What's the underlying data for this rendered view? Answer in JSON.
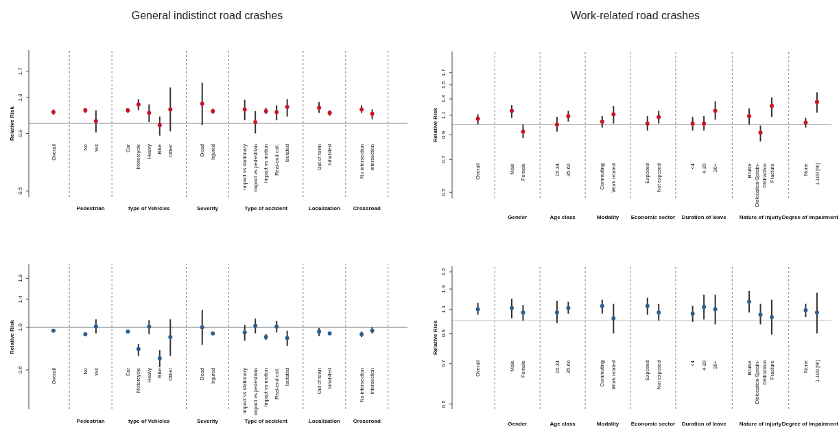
{
  "chart_data": [
    {
      "type": "scatter",
      "title": "General indistinct road crashes",
      "ylabel": "Relative Risk",
      "log": true,
      "marker": "circle",
      "color": "#cc1424",
      "categories": [
        "Overall",
        null,
        null,
        "No",
        "Yes",
        null,
        null,
        "Car",
        "Motorcycle",
        "Heavy",
        "Bike",
        "Other",
        null,
        null,
        "Dead",
        "Injured",
        null,
        null,
        "Impact vs stationary",
        "Impact vs pedestrian",
        "Impact vs motion",
        "Real-end coll.",
        "Isolated",
        null,
        null,
        "Out of town",
        "Inhabited",
        null,
        null,
        "No intersection",
        "Intersection",
        null,
        null
      ],
      "ylim": [
        0.47,
        2.11
      ],
      "yticks": [
        0.5,
        0.9,
        1.3,
        1.7
      ],
      "values": [
        1.12,
        null,
        null,
        1.14,
        1.02,
        null,
        null,
        1.14,
        1.21,
        1.11,
        0.98,
        1.15,
        null,
        null,
        1.22,
        1.13,
        null,
        null,
        1.15,
        1.01,
        1.13,
        1.12,
        1.18,
        null,
        null,
        1.17,
        1.11,
        null,
        null,
        1.15,
        1.1,
        null,
        null
      ],
      "errors": [
        [
          1.09,
          1.15
        ],
        null,
        null,
        [
          1.11,
          1.17
        ],
        [
          0.91,
          1.14
        ],
        null,
        null,
        [
          1.11,
          1.17
        ],
        [
          1.14,
          1.28
        ],
        [
          1.01,
          1.21
        ],
        [
          0.88,
          1.07
        ],
        [
          0.92,
          1.44
        ],
        null,
        null,
        [
          0.98,
          1.51
        ],
        [
          1.1,
          1.16
        ],
        null,
        null,
        [
          1.03,
          1.27
        ],
        [
          0.9,
          1.13
        ],
        [
          1.1,
          1.17
        ],
        [
          1.03,
          1.2
        ],
        [
          1.07,
          1.28
        ],
        null,
        null,
        [
          1.11,
          1.24
        ],
        [
          1.08,
          1.14
        ],
        null,
        null,
        [
          1.11,
          1.2
        ],
        [
          1.04,
          1.15
        ],
        null,
        null
      ],
      "ref_lines": [
        {
          "axis": "y",
          "value": 1,
          "color": "#8c8c8c"
        }
      ],
      "annotations": [
        "Pedestrian",
        "type of Vehicles",
        "Severity",
        "Type of accident",
        "Localization",
        "Crossroad"
      ]
    },
    {
      "type": "scatter",
      "title": "Work-related road crashes",
      "ylabel": "Relative Risk",
      "log": true,
      "marker": "circle",
      "color": "#cc1424",
      "categories": [
        "Overall",
        null,
        null,
        "Male",
        "Female",
        null,
        null,
        "15-34",
        "35-60",
        null,
        null,
        "Commuting",
        "Work related",
        null,
        null,
        "Exposed",
        "Not exposed",
        null,
        null,
        "<4",
        "4-30",
        "30+",
        null,
        null,
        "Bruise",
        "Dislocation-Sprain-Distraction",
        "Fracture",
        null,
        null,
        "None",
        "1-100 [%]"
      ],
      "ylim": [
        0.47,
        2.11
      ],
      "yticks": [
        0.5,
        0.7,
        0.9,
        1.1,
        1.3,
        1.5,
        1.7
      ],
      "values": [
        1.06,
        null,
        null,
        1.15,
        0.93,
        null,
        null,
        1.0,
        1.09,
        null,
        null,
        1.03,
        1.11,
        null,
        null,
        1.01,
        1.08,
        null,
        null,
        1.01,
        1.01,
        1.15,
        null,
        null,
        1.09,
        0.92,
        1.21,
        null,
        null,
        1.02,
        1.26
      ],
      "errors": [
        [
          1.0,
          1.11
        ],
        null,
        null,
        [
          1.07,
          1.22
        ],
        [
          0.87,
          1.0
        ],
        null,
        null,
        [
          0.93,
          1.08
        ],
        [
          1.03,
          1.15
        ],
        null,
        null,
        [
          0.97,
          1.09
        ],
        [
          1.01,
          1.21
        ],
        null,
        null,
        [
          0.94,
          1.09
        ],
        [
          1.01,
          1.15
        ],
        null,
        null,
        [
          0.94,
          1.08
        ],
        [
          0.94,
          1.09
        ],
        [
          1.05,
          1.27
        ],
        null,
        null,
        [
          1.0,
          1.18
        ],
        [
          0.84,
          0.99
        ],
        [
          1.08,
          1.32
        ],
        null,
        null,
        [
          0.97,
          1.07
        ],
        [
          1.13,
          1.39
        ]
      ],
      "ref_lines": [
        {
          "axis": "y",
          "value": 1,
          "color": "#b3b3b3"
        }
      ],
      "annotations": [
        "Gender",
        "Age class",
        "Modality",
        "Economic sector",
        "Duration of leave",
        "Nature of injuriy",
        "Degree of impairment"
      ]
    },
    {
      "type": "scatter",
      "ylabel": "Relative Risk",
      "log": true,
      "marker": "circle",
      "color": "#2e5f8e",
      "categories": [
        "Overall",
        null,
        null,
        "No",
        "Yes",
        null,
        null,
        "Car",
        "Motorcycle",
        "Heavy",
        "Bike",
        "Other",
        null,
        null,
        "Dead",
        "Injured",
        null,
        null,
        "Impact vs stationary",
        "Impact vs pedestrian",
        "Impact vs motion",
        "Real-end coll.",
        "Isolated",
        null,
        null,
        "Out of town",
        "Inhabited",
        null,
        null,
        "No intersection",
        "Intersection",
        null,
        null
      ],
      "ylim": [
        0.375,
        2.13
      ],
      "yticks": [
        0.6,
        {
          "value": 1,
          "label": "1.0"
        },
        1.4,
        1.8
      ],
      "values": [
        0.96,
        null,
        null,
        0.92,
        1.01,
        null,
        null,
        0.95,
        0.77,
        1.01,
        0.69,
        0.89,
        null,
        null,
        1.0,
        0.93,
        null,
        null,
        0.94,
        1.02,
        0.89,
        1.01,
        0.88,
        null,
        null,
        0.95,
        0.93,
        null,
        null,
        0.92,
        0.96,
        null,
        null
      ],
      "errors": [
        null,
        null,
        null,
        null,
        [
          0.93,
          1.1
        ],
        null,
        null,
        null,
        [
          0.71,
          0.82
        ],
        [
          0.92,
          1.09
        ],
        [
          0.62,
          0.76
        ],
        [
          0.71,
          1.1
        ],
        null,
        null,
        [
          0.81,
          1.23
        ],
        null,
        null,
        null,
        [
          0.85,
          1.03
        ],
        [
          0.93,
          1.11
        ],
        [
          0.86,
          0.92
        ],
        [
          0.94,
          1.08
        ],
        [
          0.8,
          0.96
        ],
        null,
        null,
        [
          0.9,
          0.99
        ],
        null,
        null,
        null,
        [
          0.89,
          0.95
        ],
        [
          0.93,
          1.0
        ],
        null,
        null
      ],
      "ref_lines": [
        {
          "axis": "y",
          "value": 1,
          "color": "#5a6570"
        }
      ],
      "annotations": [
        "Pedestrian",
        "type of Vehicles",
        "Severity",
        "Type of accident",
        "Localization",
        "Crossroad"
      ]
    },
    {
      "type": "scatter",
      "ylabel": "Relative Risk",
      "log": true,
      "marker": "circle",
      "color": "#2e5f8e",
      "categories": [
        "Overall",
        null,
        null,
        "Male",
        "Female",
        null,
        null,
        "15-34",
        "35-60",
        null,
        null,
        "Commuting",
        "Work related",
        null,
        null,
        "Exposed",
        "Not exposed",
        null,
        null,
        "<4",
        "4-30",
        "30+",
        null,
        null,
        "Bruise",
        "Dislocation-Sprain-Distraction",
        "Fracture",
        null,
        null,
        "None",
        "1-100 [%]"
      ],
      "ylim": [
        0.48,
        1.57
      ],
      "yticks": [
        0.5,
        0.7,
        0.9,
        1.1,
        1.3,
        1.5
      ],
      "values": [
        1.1,
        null,
        null,
        1.11,
        1.07,
        null,
        null,
        1.07,
        1.11,
        null,
        null,
        1.13,
        1.02,
        null,
        null,
        1.13,
        1.07,
        null,
        null,
        1.06,
        1.12,
        1.1,
        null,
        null,
        1.17,
        1.05,
        1.03,
        null,
        null,
        1.09,
        1.07
      ],
      "errors": [
        [
          1.05,
          1.16
        ],
        null,
        null,
        [
          1.02,
          1.2
        ],
        [
          1.0,
          1.14
        ],
        null,
        null,
        [
          0.98,
          1.18
        ],
        [
          1.06,
          1.17
        ],
        null,
        null,
        [
          1.06,
          1.19
        ],
        [
          0.9,
          1.15
        ],
        null,
        null,
        [
          1.05,
          1.21
        ],
        [
          1.0,
          1.15
        ],
        null,
        null,
        [
          0.99,
          1.13
        ],
        [
          1.01,
          1.24
        ],
        [
          0.97,
          1.24
        ],
        null,
        null,
        [
          1.07,
          1.28
        ],
        [
          0.97,
          1.15
        ],
        [
          0.89,
          1.19
        ],
        null,
        null,
        [
          1.03,
          1.15
        ],
        [
          0.9,
          1.26
        ]
      ],
      "ref_lines": [
        {
          "axis": "y",
          "value": 1,
          "color": "#bdbdbd"
        }
      ],
      "annotations": [
        "Gender",
        "Age class",
        "Modality",
        "Economic sector",
        "Duration of leave",
        "Nature of injuriy",
        "Degree of impairment"
      ]
    }
  ]
}
